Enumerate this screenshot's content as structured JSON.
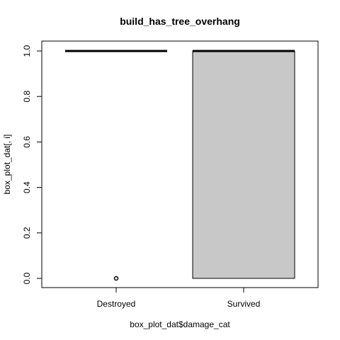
{
  "chart_data": {
    "type": "box",
    "title": "build_has_tree_overhang",
    "xlabel": "box_plot_dat$damage_cat",
    "ylabel": "box_plot_dat[, i]",
    "categories": [
      "Destroyed",
      "Survived"
    ],
    "ylim": [
      0,
      1
    ],
    "yticks": [
      "0.0",
      "0.2",
      "0.4",
      "0.6",
      "0.8",
      "1.0"
    ],
    "boxes": [
      {
        "category": "Destroyed",
        "q1": 1,
        "median": 1,
        "q3": 1,
        "whisker_low": 1,
        "whisker_high": 1,
        "outliers": [
          0
        ]
      },
      {
        "category": "Survived",
        "q1": 0,
        "median": 1,
        "q3": 1,
        "whisker_low": 0,
        "whisker_high": 1,
        "outliers": []
      }
    ],
    "box_fill": "#c8c8c8",
    "grid": false
  }
}
